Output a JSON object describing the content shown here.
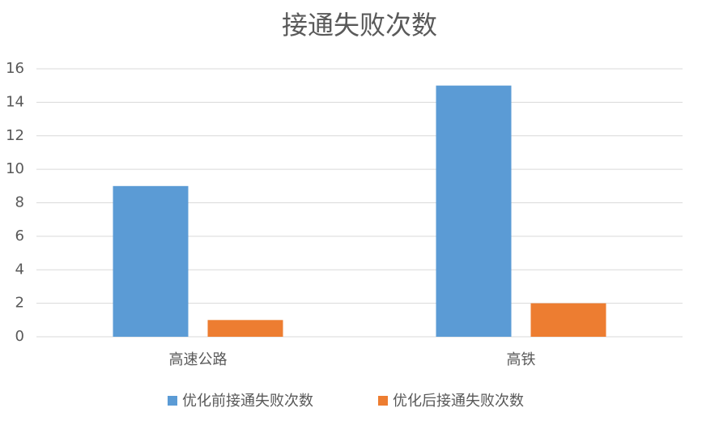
{
  "chart_data": {
    "type": "bar",
    "title": "接通失败次数",
    "categories": [
      "高速公路",
      "高铁"
    ],
    "series": [
      {
        "name": "优化前接通失败次数",
        "color": "#5b9bd5",
        "values": [
          9,
          15
        ]
      },
      {
        "name": "优化后接通失败次数",
        "color": "#ed7d31",
        "values": [
          1,
          2
        ]
      }
    ],
    "ylim": [
      0,
      16
    ],
    "yticks": [
      0,
      2,
      4,
      6,
      8,
      10,
      12,
      14,
      16
    ],
    "grid": true,
    "legend": "bottom"
  }
}
